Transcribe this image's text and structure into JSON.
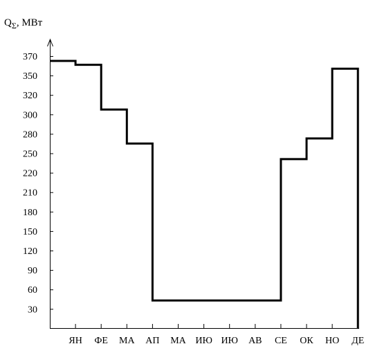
{
  "chart_data": {
    "type": "line",
    "step": true,
    "title": "",
    "ylabel_main": "Q",
    "ylabel_sub": "Σ",
    "ylabel_unit": ", МВт",
    "xlabel": "",
    "categories": [
      "ЯН",
      "ФЕ",
      "МА",
      "АП",
      "МА",
      "ИЮ",
      "ИЮ",
      "АВ",
      "СЕ",
      "ОК",
      "НО",
      "ДЕ"
    ],
    "yticks": [
      "370",
      "350",
      "320",
      "300",
      "280",
      "250",
      "220",
      "210",
      "180",
      "150",
      "120",
      "90",
      "60",
      "30"
    ],
    "series": [
      {
        "segments": [
          {
            "start": 0,
            "end": 1,
            "value": 365
          },
          {
            "start": 1,
            "end": 2,
            "value": 361
          },
          {
            "start": 2,
            "end": 3,
            "value": 305
          },
          {
            "start": 3,
            "end": 4,
            "value": 265
          },
          {
            "start": 4,
            "end": 9,
            "value": 43
          },
          {
            "start": 9,
            "end": 10,
            "value": 241
          },
          {
            "start": 10,
            "end": 11,
            "value": 273
          },
          {
            "start": 11,
            "end": 12,
            "value": 357
          }
        ]
      }
    ],
    "grid": false,
    "colors": {
      "line": "#000000",
      "axis": "#000000"
    }
  }
}
